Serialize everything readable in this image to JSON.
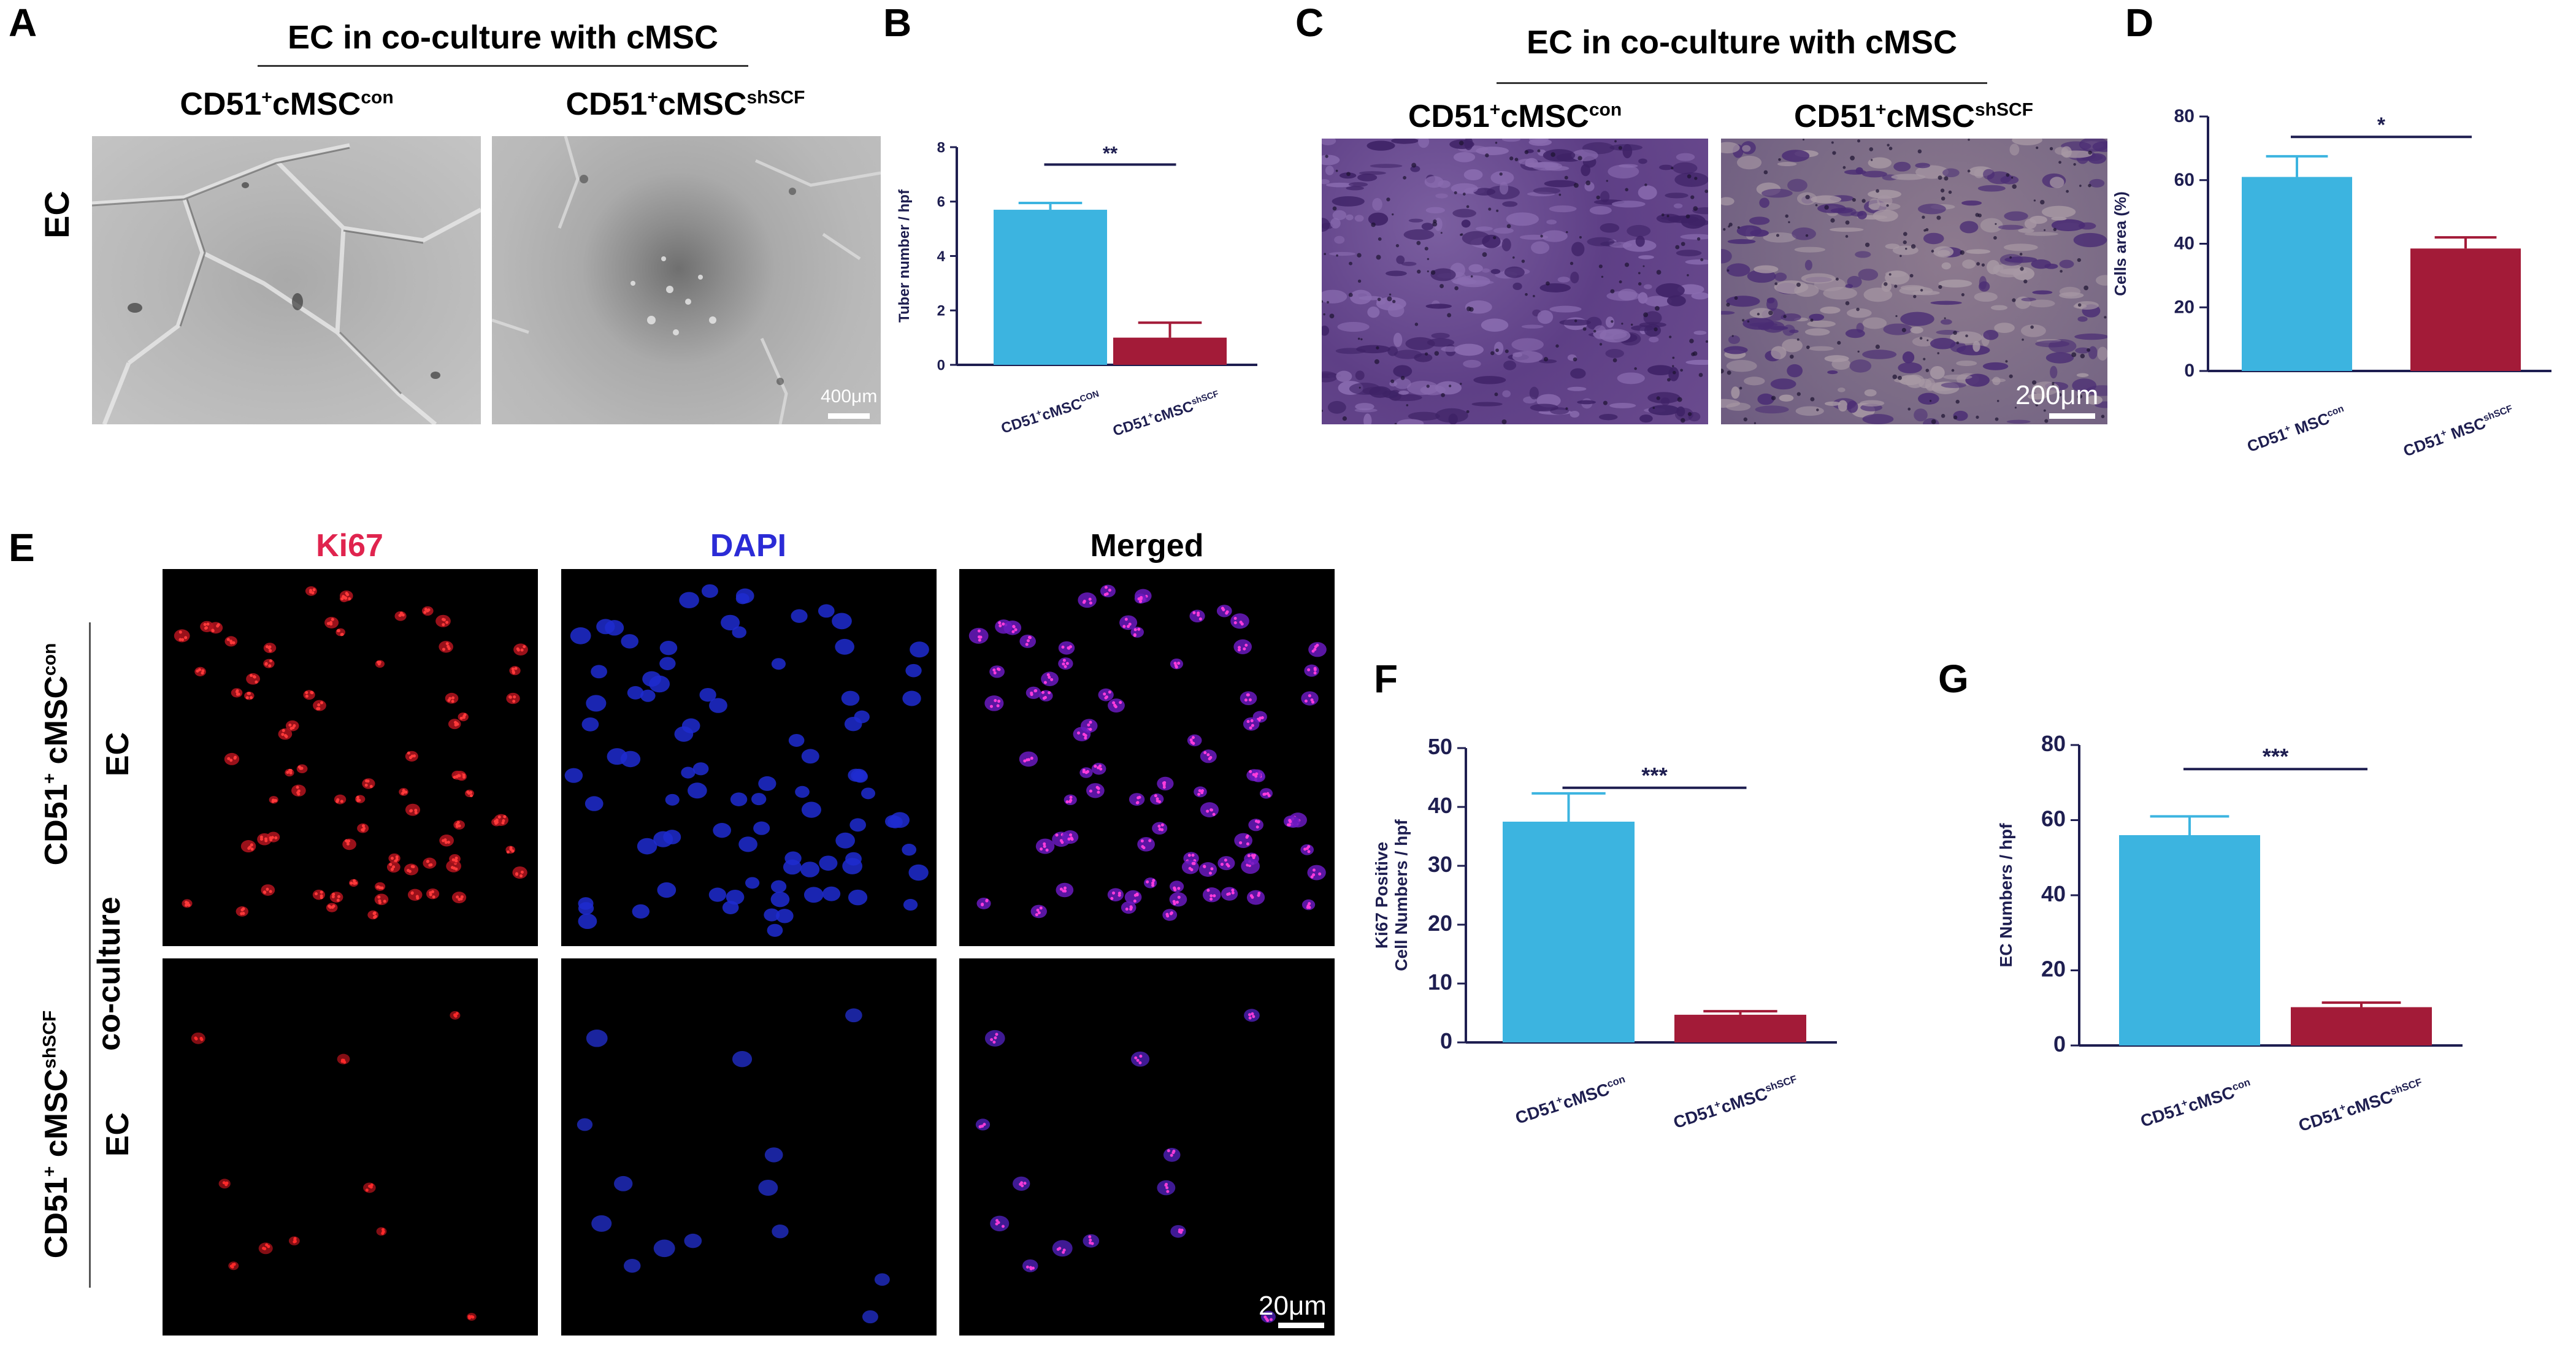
{
  "panel_labels": {
    "A": "A",
    "B": "B",
    "C": "C",
    "D": "D",
    "E": "E",
    "F": "F",
    "G": "G"
  },
  "panel_a": {
    "title": "EC in co-culture with cMSC",
    "col1": {
      "base": "CD51",
      "sup": "+",
      "base2": "cMSC",
      "sup2": "con"
    },
    "col2": {
      "base": "CD51",
      "sup": "+",
      "base2": "cMSC",
      "sup2": "shSCF"
    },
    "row_label": "EC",
    "scale": "400μm"
  },
  "panel_c": {
    "title": "EC in co-culture with cMSC",
    "col1": {
      "base": "CD51",
      "sup": "+",
      "base2": "cMSC",
      "sup2": "con"
    },
    "col2": {
      "base": "CD51",
      "sup": "+",
      "base2": "cMSC",
      "sup2": "shSCF"
    },
    "scale": "200μm"
  },
  "panel_e": {
    "col1": "Ki67",
    "col2": "DAPI",
    "col3": "Merged",
    "row1": {
      "base": "CD51",
      "sup": "+",
      "base2": " cMSC",
      "sup2": "con"
    },
    "row1_sub": "EC",
    "middle": "co-culture",
    "row2": {
      "base": "CD51",
      "sup": "+",
      "base2": " cMSC",
      "sup2": "shSCF"
    },
    "row2_sub": "EC",
    "scale": "20μm"
  },
  "colors": {
    "con": "#3cb4e0",
    "shscf": "#a31b38",
    "ki67_label": "#e0244e",
    "dapi_label": "#2b2bd6",
    "axis": "#1e1e50"
  },
  "chart_data": [
    {
      "id": "B",
      "type": "bar",
      "categories": [
        {
          "base": "CD51",
          "sup": "+",
          "base2": "cMSC",
          "sup2": "CON"
        },
        {
          "base": "CD51",
          "sup": "+",
          "base2": "cMSC",
          "sup2": "shSCF"
        }
      ],
      "values": [
        5.7,
        1.0
      ],
      "errors": [
        0.25,
        0.55
      ],
      "ylabel": "Tuber number / hpf",
      "ylim": [
        0,
        8
      ],
      "yticks": [
        0,
        2,
        4,
        6,
        8
      ],
      "significance": "**"
    },
    {
      "id": "D",
      "type": "bar",
      "categories": [
        {
          "base": "CD51",
          "sup": "+",
          "base2": " MSC",
          "sup2": "con"
        },
        {
          "base": "CD51",
          "sup": "+",
          "base2": " MSC",
          "sup2": "shSCF"
        }
      ],
      "values": [
        61,
        38.5
      ],
      "errors": [
        6.5,
        3.5
      ],
      "ylabel": "Cells area (%)",
      "ylim": [
        0,
        80
      ],
      "yticks": [
        0,
        20,
        40,
        60,
        80
      ],
      "significance": "*"
    },
    {
      "id": "F",
      "type": "bar",
      "categories": [
        {
          "base": "CD51",
          "sup": "+",
          "base2": "cMSC",
          "sup2": "con"
        },
        {
          "base": "CD51",
          "sup": "+",
          "base2": "cMSC",
          "sup2": "shSCF"
        }
      ],
      "values": [
        37.5,
        4.7
      ],
      "errors": [
        4.8,
        0.6
      ],
      "ylabel": "Ki67 Positive",
      "ylabel2": "Cell Numbers / hpf",
      "ylim": [
        0,
        50
      ],
      "yticks": [
        0,
        10,
        20,
        30,
        40,
        50
      ],
      "significance": "***"
    },
    {
      "id": "G",
      "type": "bar",
      "categories": [
        {
          "base": "CD51",
          "sup": "+",
          "base2": "cMSC",
          "sup2": "con"
        },
        {
          "base": "CD51",
          "sup": "+",
          "base2": "cMSC",
          "sup2": "shSCF"
        }
      ],
      "values": [
        56,
        10.2
      ],
      "errors": [
        5,
        1.2
      ],
      "ylabel": "EC Numbers / hpf",
      "ylim": [
        0,
        80
      ],
      "yticks": [
        0,
        20,
        40,
        60,
        80
      ],
      "significance": "***"
    }
  ]
}
